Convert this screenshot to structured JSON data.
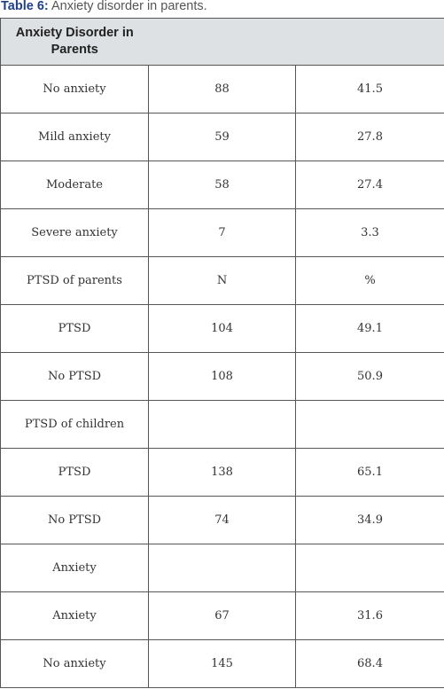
{
  "caption": {
    "label": "Table 6:",
    "text": "Anxiety disorder in parents."
  },
  "table": {
    "header": "Anxiety Disorder in Parents",
    "rows": [
      [
        "No anxiety",
        "88",
        "41.5"
      ],
      [
        "Mild anxiety",
        "59",
        "27.8"
      ],
      [
        "Moderate",
        "58",
        "27.4"
      ],
      [
        "Severe anxiety",
        "7",
        "3.3"
      ],
      [
        "PTSD of parents",
        "N",
        "%"
      ],
      [
        "PTSD",
        "104",
        "49.1"
      ],
      [
        "No PTSD",
        "108",
        "50.9"
      ],
      [
        "PTSD of children",
        "",
        ""
      ],
      [
        "PTSD",
        "138",
        "65.1"
      ],
      [
        "No PTSD",
        "74",
        "34.9"
      ],
      [
        "Anxiety",
        "",
        ""
      ],
      [
        "Anxiety",
        "67",
        "31.6"
      ],
      [
        "No anxiety",
        "145",
        "68.4"
      ]
    ]
  },
  "colors": {
    "caption_label": "#1f3f87",
    "header_bg": "#dde1e3",
    "border": "#555555"
  }
}
